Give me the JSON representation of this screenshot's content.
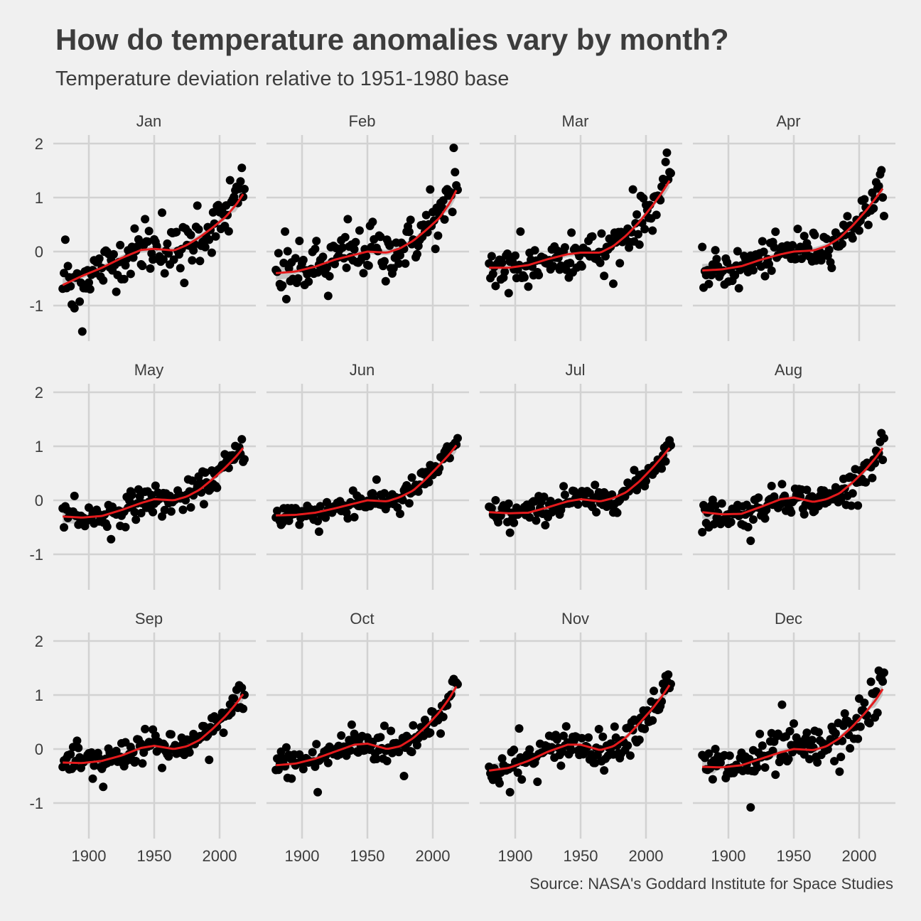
{
  "title": "How do temperature anomalies vary by month?",
  "subtitle": "Temperature deviation relative to 1951-1980 base",
  "caption": "Source: NASA's Goddard Institute for Space Studies",
  "colors": {
    "background": "#f0f0f0",
    "grid": "#d2d2d2",
    "text": "#3c3c3c",
    "points": "#000000",
    "smooth_line": "#e41a1c",
    "confidence_band": "#b9b9b9"
  },
  "chart_data": {
    "type": "scatter",
    "layout": "facet grid, 3 rows x 4 columns, shared axes",
    "xlim": [
      1880,
      2019
    ],
    "ylim": [
      -1.5,
      2
    ],
    "x_ticks": [
      1900,
      1950,
      2000
    ],
    "y_ticks": [
      -1,
      0,
      1,
      2
    ],
    "x_tick_labels": [
      "1900",
      "1950",
      "2000"
    ],
    "y_tick_labels": [
      "-1",
      "0",
      "1",
      "2"
    ],
    "grid": true,
    "smoothing": "loess curve with shaded confidence band",
    "panels": [
      {
        "month": "Jan",
        "smooth": [
          [
            1880,
            -0.62
          ],
          [
            1895,
            -0.45
          ],
          [
            1910,
            -0.3
          ],
          [
            1925,
            -0.12
          ],
          [
            1940,
            0.03
          ],
          [
            1950,
            0.05
          ],
          [
            1965,
            0.02
          ],
          [
            1975,
            0.12
          ],
          [
            1985,
            0.27
          ],
          [
            1995,
            0.45
          ],
          [
            2005,
            0.65
          ],
          [
            2013,
            0.88
          ],
          [
            2019,
            1.1
          ]
        ],
        "highlights": [
          [
            1882,
            0.22
          ],
          [
            1895,
            -1.48
          ],
          [
            1887,
            -0.98
          ],
          [
            1889,
            -1.05
          ],
          [
            2017,
            1.55
          ],
          [
            2016,
            1.3
          ],
          [
            2008,
            1.32
          ],
          [
            1983,
            0.85
          ],
          [
            1943,
            0.6
          ],
          [
            1956,
            0.72
          ],
          [
            1973,
            -0.58
          ]
        ]
      },
      {
        "month": "Feb",
        "smooth": [
          [
            1880,
            -0.4
          ],
          [
            1895,
            -0.37
          ],
          [
            1910,
            -0.28
          ],
          [
            1925,
            -0.15
          ],
          [
            1940,
            -0.06
          ],
          [
            1950,
            0.0
          ],
          [
            1965,
            -0.02
          ],
          [
            1975,
            0.06
          ],
          [
            1985,
            0.2
          ],
          [
            1995,
            0.4
          ],
          [
            2005,
            0.62
          ],
          [
            2013,
            0.9
          ],
          [
            2019,
            1.18
          ]
        ],
        "highlights": [
          [
            2016,
            1.92
          ],
          [
            2017,
            1.47
          ],
          [
            1887,
            0.37
          ],
          [
            1888,
            -0.88
          ],
          [
            1920,
            -0.82
          ],
          [
            1935,
            0.6
          ],
          [
            1998,
            1.15
          ],
          [
            1954,
            0.55
          ],
          [
            1964,
            -0.55
          ]
        ]
      },
      {
        "month": "Mar",
        "smooth": [
          [
            1880,
            -0.3
          ],
          [
            1895,
            -0.3
          ],
          [
            1910,
            -0.25
          ],
          [
            1925,
            -0.14
          ],
          [
            1940,
            -0.05
          ],
          [
            1950,
            -0.02
          ],
          [
            1965,
            -0.02
          ],
          [
            1975,
            0.1
          ],
          [
            1985,
            0.3
          ],
          [
            1995,
            0.55
          ],
          [
            2005,
            0.85
          ],
          [
            2013,
            1.12
          ],
          [
            2019,
            1.35
          ]
        ],
        "highlights": [
          [
            2016,
            1.83
          ],
          [
            2019,
            1.45
          ],
          [
            1990,
            1.15
          ],
          [
            1895,
            -0.77
          ],
          [
            1904,
            0.37
          ],
          [
            1910,
            -0.65
          ],
          [
            1943,
            0.35
          ],
          [
            1968,
            -0.45
          ]
        ]
      },
      {
        "month": "Apr",
        "smooth": [
          [
            1880,
            -0.35
          ],
          [
            1895,
            -0.33
          ],
          [
            1910,
            -0.27
          ],
          [
            1925,
            -0.15
          ],
          [
            1940,
            -0.05
          ],
          [
            1950,
            0.0
          ],
          [
            1965,
            0.02
          ],
          [
            1975,
            0.1
          ],
          [
            1985,
            0.25
          ],
          [
            1995,
            0.48
          ],
          [
            2005,
            0.75
          ],
          [
            2013,
            1.0
          ],
          [
            2019,
            1.2
          ]
        ],
        "highlights": [
          [
            2016,
            1.43
          ],
          [
            1885,
            -0.6
          ],
          [
            1908,
            -0.68
          ],
          [
            1953,
            0.42
          ],
          [
            1983,
            0.1
          ],
          [
            1990,
            0.45
          ]
        ]
      },
      {
        "month": "May",
        "smooth": [
          [
            1880,
            -0.3
          ],
          [
            1895,
            -0.32
          ],
          [
            1910,
            -0.29
          ],
          [
            1925,
            -0.18
          ],
          [
            1940,
            -0.05
          ],
          [
            1950,
            0.02
          ],
          [
            1965,
            0.0
          ],
          [
            1975,
            0.07
          ],
          [
            1985,
            0.2
          ],
          [
            1995,
            0.4
          ],
          [
            2005,
            0.62
          ],
          [
            2013,
            0.82
          ],
          [
            2019,
            1.0
          ]
        ],
        "highlights": [
          [
            1917,
            -0.72
          ],
          [
            1889,
            0.08
          ],
          [
            1956,
            -0.3
          ],
          [
            2015,
            0.98
          ],
          [
            1880,
            -0.15
          ],
          [
            1938,
            0.2
          ]
        ]
      },
      {
        "month": "Jun",
        "smooth": [
          [
            1880,
            -0.28
          ],
          [
            1895,
            -0.27
          ],
          [
            1910,
            -0.23
          ],
          [
            1925,
            -0.15
          ],
          [
            1940,
            -0.06
          ],
          [
            1950,
            0.0
          ],
          [
            1965,
            -0.02
          ],
          [
            1975,
            0.06
          ],
          [
            1985,
            0.18
          ],
          [
            1995,
            0.4
          ],
          [
            2005,
            0.65
          ],
          [
            2013,
            0.86
          ],
          [
            2019,
            1.05
          ]
        ],
        "highlights": [
          [
            2019,
            1.15
          ],
          [
            1913,
            -0.58
          ],
          [
            1939,
            0.18
          ],
          [
            1975,
            -0.25
          ],
          [
            2016,
            1.0
          ]
        ]
      },
      {
        "month": "Jul",
        "smooth": [
          [
            1880,
            -0.22
          ],
          [
            1895,
            -0.24
          ],
          [
            1910,
            -0.23
          ],
          [
            1925,
            -0.13
          ],
          [
            1940,
            -0.02
          ],
          [
            1950,
            0.02
          ],
          [
            1965,
            -0.02
          ],
          [
            1975,
            0.04
          ],
          [
            1985,
            0.15
          ],
          [
            1995,
            0.35
          ],
          [
            2005,
            0.6
          ],
          [
            2013,
            0.82
          ],
          [
            2019,
            1.0
          ]
        ],
        "highlights": [
          [
            1896,
            -0.6
          ],
          [
            1937,
            0.26
          ],
          [
            1962,
            -0.22
          ],
          [
            2016,
            1.02
          ],
          [
            1880,
            -0.12
          ]
        ]
      },
      {
        "month": "Aug",
        "smooth": [
          [
            1880,
            -0.22
          ],
          [
            1895,
            -0.26
          ],
          [
            1910,
            -0.25
          ],
          [
            1925,
            -0.12
          ],
          [
            1940,
            0.02
          ],
          [
            1950,
            0.05
          ],
          [
            1965,
            -0.03
          ],
          [
            1975,
            0.02
          ],
          [
            1985,
            0.13
          ],
          [
            1995,
            0.33
          ],
          [
            2005,
            0.57
          ],
          [
            2013,
            0.8
          ],
          [
            2019,
            1.0
          ]
        ],
        "highlights": [
          [
            1917,
            -0.75
          ],
          [
            1941,
            0.3
          ],
          [
            2016,
            1.08
          ],
          [
            1885,
            -0.5
          ],
          [
            1994,
            -0.1
          ]
        ]
      },
      {
        "month": "Sep",
        "smooth": [
          [
            1880,
            -0.25
          ],
          [
            1895,
            -0.26
          ],
          [
            1910,
            -0.22
          ],
          [
            1925,
            -0.12
          ],
          [
            1940,
            0.02
          ],
          [
            1950,
            0.06
          ],
          [
            1965,
            0.0
          ],
          [
            1975,
            0.05
          ],
          [
            1985,
            0.17
          ],
          [
            1995,
            0.38
          ],
          [
            2005,
            0.62
          ],
          [
            2013,
            0.85
          ],
          [
            2019,
            1.05
          ]
        ],
        "highlights": [
          [
            1892,
            0.02
          ],
          [
            1903,
            -0.55
          ],
          [
            1911,
            -0.7
          ],
          [
            1943,
            0.37
          ],
          [
            1956,
            -0.35
          ],
          [
            2015,
            1.18
          ],
          [
            1992,
            -0.2
          ]
        ]
      },
      {
        "month": "Oct",
        "smooth": [
          [
            1880,
            -0.3
          ],
          [
            1895,
            -0.27
          ],
          [
            1910,
            -0.18
          ],
          [
            1925,
            -0.05
          ],
          [
            1940,
            0.08
          ],
          [
            1950,
            0.1
          ],
          [
            1965,
            0.0
          ],
          [
            1975,
            0.05
          ],
          [
            1985,
            0.2
          ],
          [
            1995,
            0.42
          ],
          [
            2005,
            0.68
          ],
          [
            2013,
            0.95
          ],
          [
            2019,
            1.2
          ]
        ],
        "highlights": [
          [
            1912,
            -0.8
          ],
          [
            1888,
            0.03
          ],
          [
            1938,
            0.45
          ],
          [
            1963,
            0.43
          ],
          [
            1978,
            -0.5
          ],
          [
            2015,
            1.25
          ]
        ]
      },
      {
        "month": "Nov",
        "smooth": [
          [
            1880,
            -0.4
          ],
          [
            1895,
            -0.35
          ],
          [
            1910,
            -0.22
          ],
          [
            1925,
            -0.05
          ],
          [
            1940,
            0.08
          ],
          [
            1950,
            0.08
          ],
          [
            1965,
            -0.02
          ],
          [
            1975,
            0.05
          ],
          [
            1985,
            0.22
          ],
          [
            1995,
            0.48
          ],
          [
            2005,
            0.75
          ],
          [
            2013,
            1.0
          ],
          [
            2019,
            1.22
          ]
        ],
        "highlights": [
          [
            1896,
            -0.8
          ],
          [
            1903,
            0.38
          ],
          [
            1939,
            0.42
          ],
          [
            2015,
            1.35
          ],
          [
            1881,
            -0.45
          ]
        ]
      },
      {
        "month": "Dec",
        "smooth": [
          [
            1880,
            -0.33
          ],
          [
            1895,
            -0.34
          ],
          [
            1910,
            -0.3
          ],
          [
            1925,
            -0.18
          ],
          [
            1940,
            -0.06
          ],
          [
            1950,
            0.0
          ],
          [
            1965,
            -0.02
          ],
          [
            1975,
            0.05
          ],
          [
            1985,
            0.2
          ],
          [
            1995,
            0.42
          ],
          [
            2005,
            0.68
          ],
          [
            2013,
            0.92
          ],
          [
            2019,
            1.15
          ]
        ],
        "highlights": [
          [
            1917,
            -1.08
          ],
          [
            1941,
            0.82
          ],
          [
            2015,
            1.45
          ],
          [
            2016,
            1.32
          ],
          [
            1985,
            -0.42
          ],
          [
            1890,
            0.0
          ]
        ]
      }
    ]
  }
}
